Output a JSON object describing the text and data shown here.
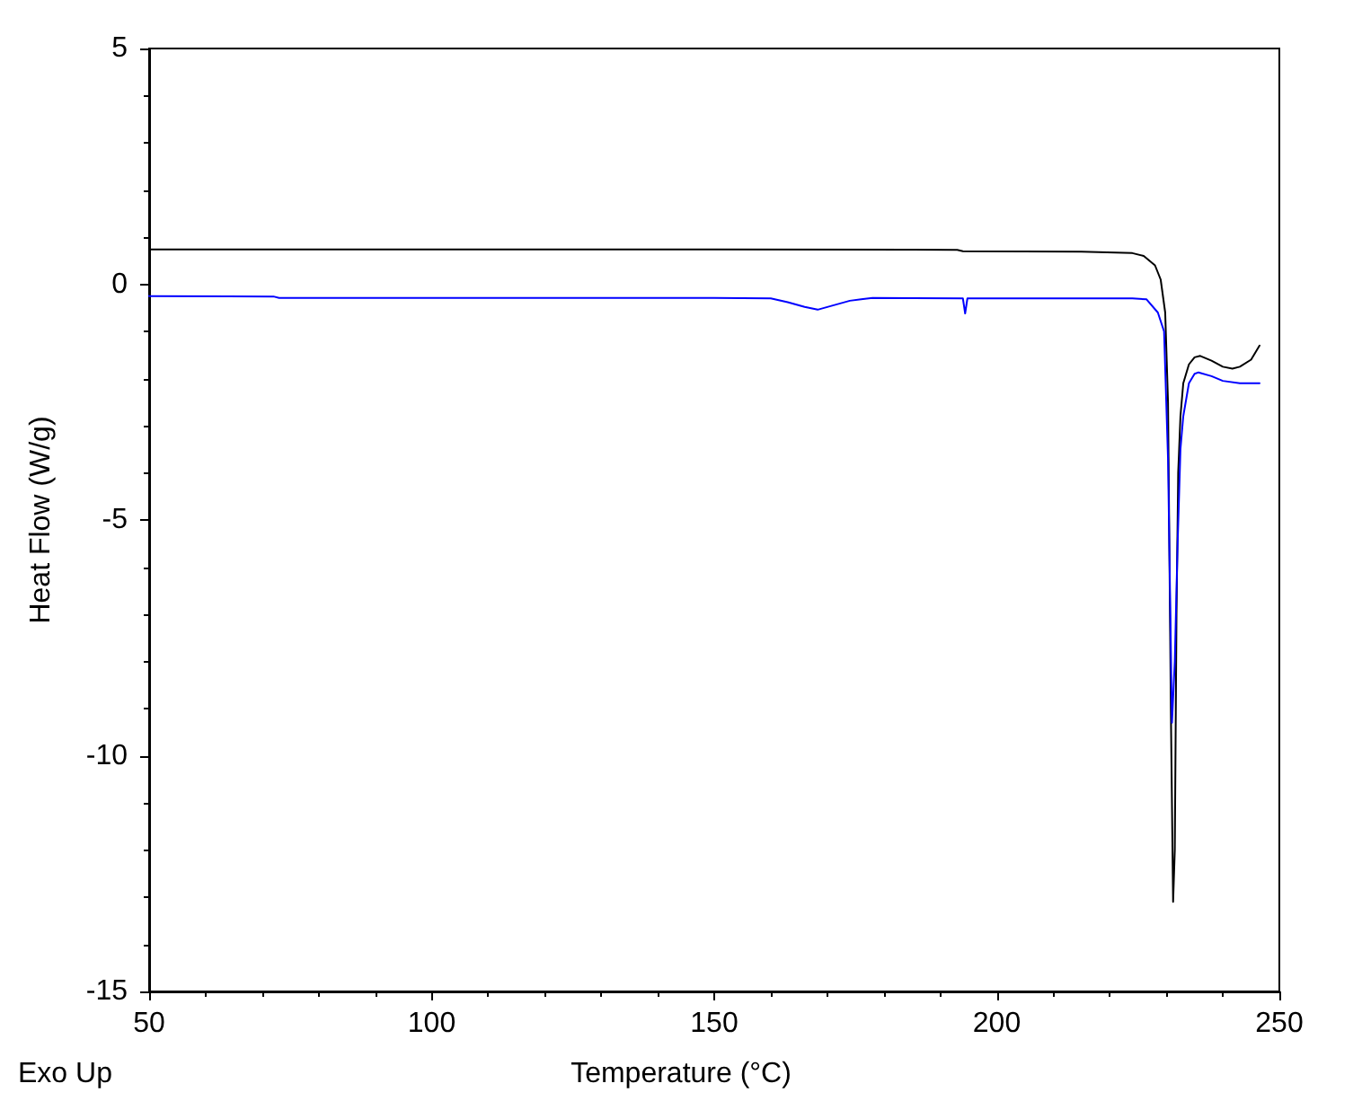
{
  "chart_data": {
    "type": "line",
    "xlabel": "Temperature (°C)",
    "ylabel": "Heat Flow (W/g)",
    "annotations": [
      "Exo Up"
    ],
    "xlim": [
      50,
      250
    ],
    "xticks": [
      50,
      100,
      150,
      200,
      250
    ],
    "ylim": [
      -15,
      5
    ],
    "yticks": [
      -15,
      -10,
      -5,
      0,
      5
    ],
    "grid": false,
    "marker": "none",
    "line_style": "solid",
    "series": [
      {
        "color": "#000000",
        "x": [
          50,
          100,
          150,
          193,
          194,
          215,
          224,
          226,
          228,
          229,
          229.8,
          230.3,
          230.8,
          231.2,
          231.5,
          231.8,
          232.1,
          232.5,
          233,
          234,
          235,
          236,
          238,
          240,
          241.7,
          243,
          245,
          246.5
        ],
        "values": [
          0.74,
          0.74,
          0.74,
          0.73,
          0.7,
          0.69,
          0.66,
          0.6,
          0.4,
          0.1,
          -0.6,
          -2.5,
          -9,
          -13.1,
          -12,
          -7,
          -4,
          -2.8,
          -2.1,
          -1.7,
          -1.55,
          -1.52,
          -1.62,
          -1.75,
          -1.79,
          -1.75,
          -1.6,
          -1.3
        ]
      },
      {
        "color": "#0000ff",
        "x": [
          50,
          72,
          73,
          150,
          160,
          163,
          166,
          168.3,
          171,
          174,
          176,
          178,
          194,
          194.4,
          194.8,
          200,
          224,
          226.5,
          228.5,
          229.6,
          230.3,
          231,
          231.5,
          232,
          232.5,
          233,
          234,
          235,
          235.7,
          238,
          240,
          243,
          246.5
        ],
        "values": [
          -0.25,
          -0.26,
          -0.29,
          -0.29,
          -0.3,
          -0.38,
          -0.48,
          -0.54,
          -0.45,
          -0.35,
          -0.32,
          -0.29,
          -0.3,
          -0.62,
          -0.3,
          -0.3,
          -0.3,
          -0.32,
          -0.6,
          -1.0,
          -3.7,
          -9.3,
          -8,
          -5.5,
          -3.5,
          -2.8,
          -2.1,
          -1.9,
          -1.87,
          -1.95,
          -2.05,
          -2.1,
          -2.1
        ]
      }
    ]
  }
}
